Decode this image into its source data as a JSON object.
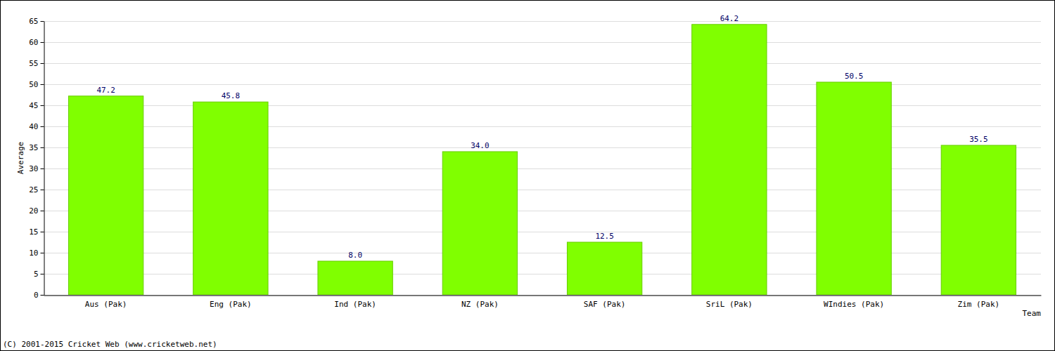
{
  "chart_data": {
    "type": "bar",
    "categories": [
      "Aus (Pak)",
      "Eng (Pak)",
      "Ind (Pak)",
      "NZ (Pak)",
      "SAF (Pak)",
      "SriL (Pak)",
      "WIndies (Pak)",
      "Zim (Pak)"
    ],
    "values": [
      47.2,
      45.8,
      8.0,
      34.0,
      12.5,
      64.2,
      50.5,
      35.5
    ],
    "value_labels": [
      "47.2",
      "45.8",
      "8.0",
      "34.0",
      "12.5",
      "64.2",
      "50.5",
      "35.5"
    ],
    "data_labels": true,
    "color": "#80ff00",
    "x_label": "Team",
    "y_label": "Average",
    "ylim": [
      0,
      65
    ],
    "yticks": [
      0,
      5,
      10,
      15,
      20,
      25,
      30,
      35,
      40,
      45,
      50,
      55,
      60,
      65
    ],
    "grid": true,
    "annotations": [
      "(C) 2001-2015 Cricket Web (www.cricketweb.net)"
    ]
  }
}
